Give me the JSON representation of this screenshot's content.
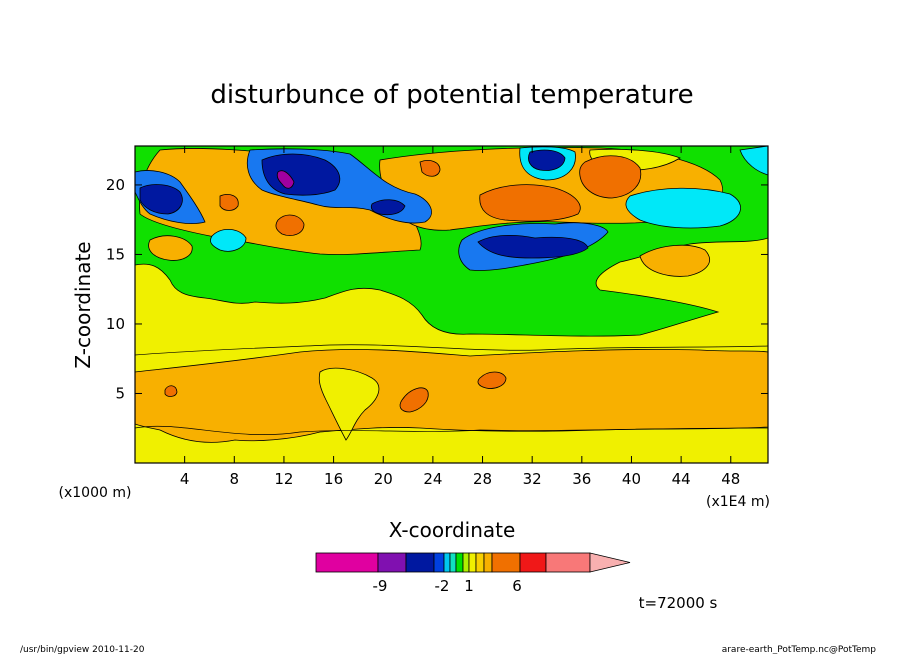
{
  "chart_data": {
    "type": "heatmap",
    "title": "disturbunce of potential temperature",
    "xlabel": "X-coordinate",
    "ylabel": "Z-coordinate",
    "x_unit_left": "(x1000 m)",
    "x_unit_right": "(x1E4 m)",
    "xlim": [
      0,
      51
    ],
    "ylim": [
      0,
      22.8
    ],
    "x_ticks": [
      "4",
      "8",
      "12",
      "16",
      "20",
      "24",
      "28",
      "32",
      "36",
      "40",
      "44",
      "48"
    ],
    "y_ticks": [
      "5",
      "10",
      "15",
      "20"
    ],
    "colorbar_labels": [
      "-9",
      "-2",
      "1",
      "6"
    ],
    "colorbar_colors": [
      "#e000a0",
      "#8010b0",
      "#0018a0",
      "#0040e0",
      "#00c8f0",
      "#10e0c0",
      "#00e000",
      "#b0f000",
      "#f0f000",
      "#f8d000",
      "#f8b000",
      "#f07000",
      "#f01818",
      "#f87878",
      "#f8b0b0"
    ],
    "palette": {
      "yellow": "#f0f000",
      "orange": "#f8b000",
      "green": "#10e000",
      "cyan": "#00e8f8",
      "blue": "#1878f0",
      "navy": "#0018a0",
      "deep_orange": "#f07000",
      "magenta": "#a000a0"
    },
    "time_label": "t=72000 s"
  },
  "footer": {
    "left": "/usr/bin/gpview   2010-11-20",
    "right": "arare-earth_PotTemp.nc@PotTemp"
  }
}
